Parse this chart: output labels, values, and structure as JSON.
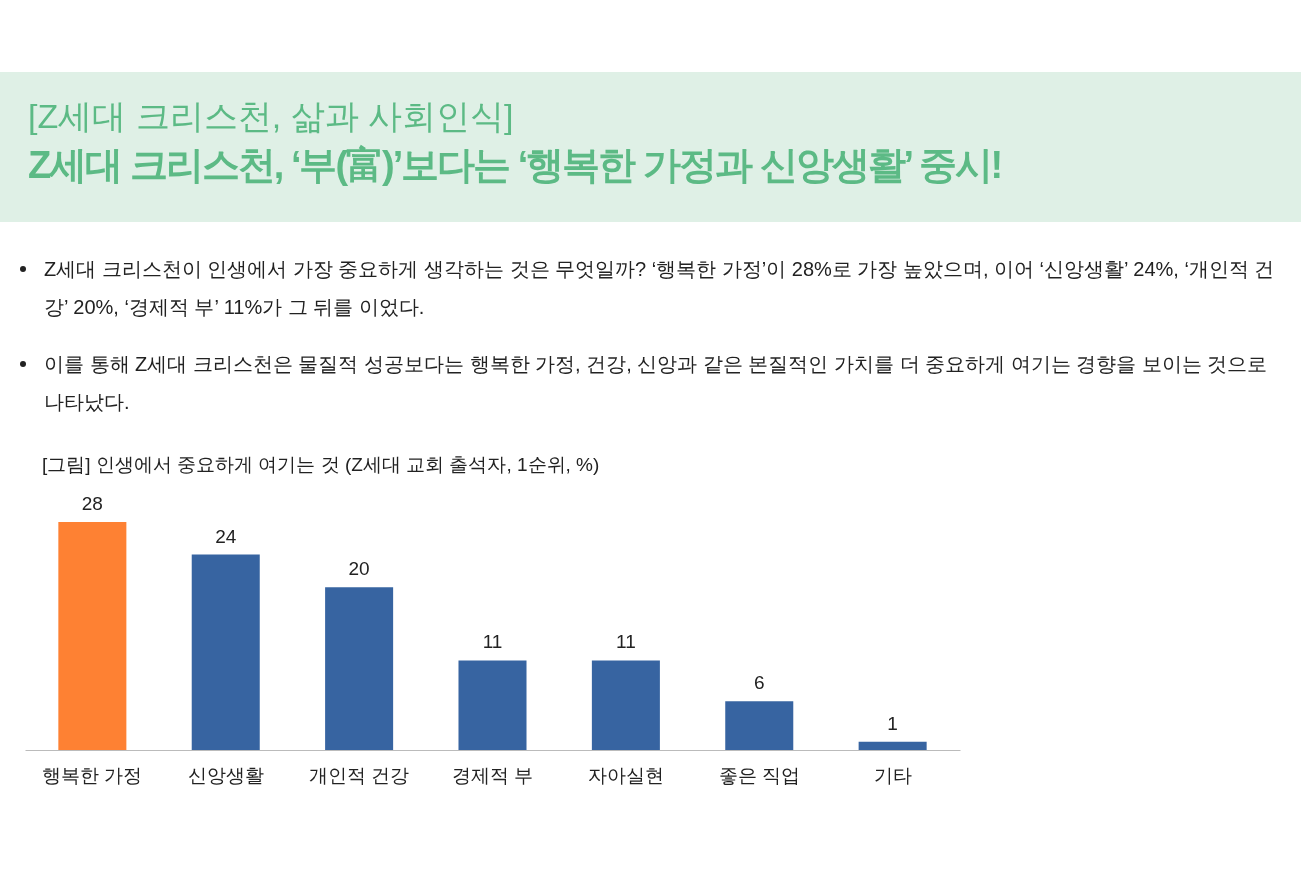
{
  "chart_data": {
    "type": "bar",
    "title": "[Z세대 크리스천, 삶과 사회인식]",
    "subtitle": "Z세대 크리스천, ‘부(富)’보다는 ‘행복한 가정과 신앙생활’ 중시!",
    "annotations": [
      "Z세대 크리스천이 인생에서 가장 중요하게 생각하는 것은 무엇일까? ‘행복한 가정’이 28%로 가장 높았으며, 이어 ‘신앙생활’ 24%, ‘개인적 건강’ 20%, ‘경제적 부’ 11%가 그 뒤를 이었다.",
      "이를 통해 Z세대 크리스천은 물질적 성공보다는 행복한 가정, 건강, 신앙과 같은 본질적인 가치를 더 중요하게 여기는 경향을 보이는 것으로 나타났다.",
      "[그림] 인생에서 중요하게 여기는 것 (Z세대 교회 출석자, 1순위, %)"
    ],
    "categories": [
      "행복한 가정",
      "신앙생활",
      "개인적 건강",
      "경제적 부",
      "자아실현",
      "좋은 직업",
      "기타"
    ],
    "values": [
      28,
      24,
      20,
      11,
      11,
      6,
      1
    ],
    "colors": [
      "#fe8133",
      "#3764a1",
      "#3764a1",
      "#3764a1",
      "#3764a1",
      "#3764a1",
      "#3764a1"
    ],
    "data_labels": true
  }
}
